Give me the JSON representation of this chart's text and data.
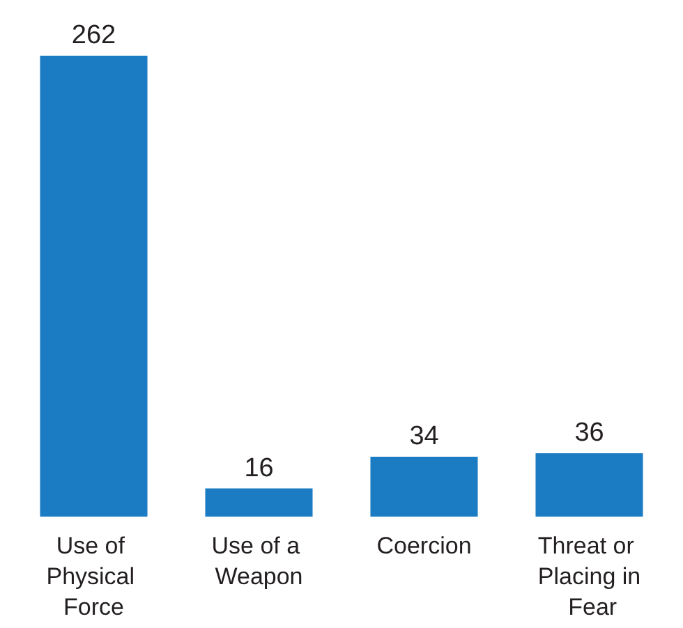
{
  "chart_data": {
    "type": "bar",
    "categories": [
      "Use of Physical Force",
      "Use of a Weapon",
      "Coercion",
      "Threat or Placing in Fear"
    ],
    "values": [
      262,
      16,
      34,
      36
    ],
    "color": "#1b7cc4",
    "data_labels": true,
    "tick_labels": "x"
  }
}
